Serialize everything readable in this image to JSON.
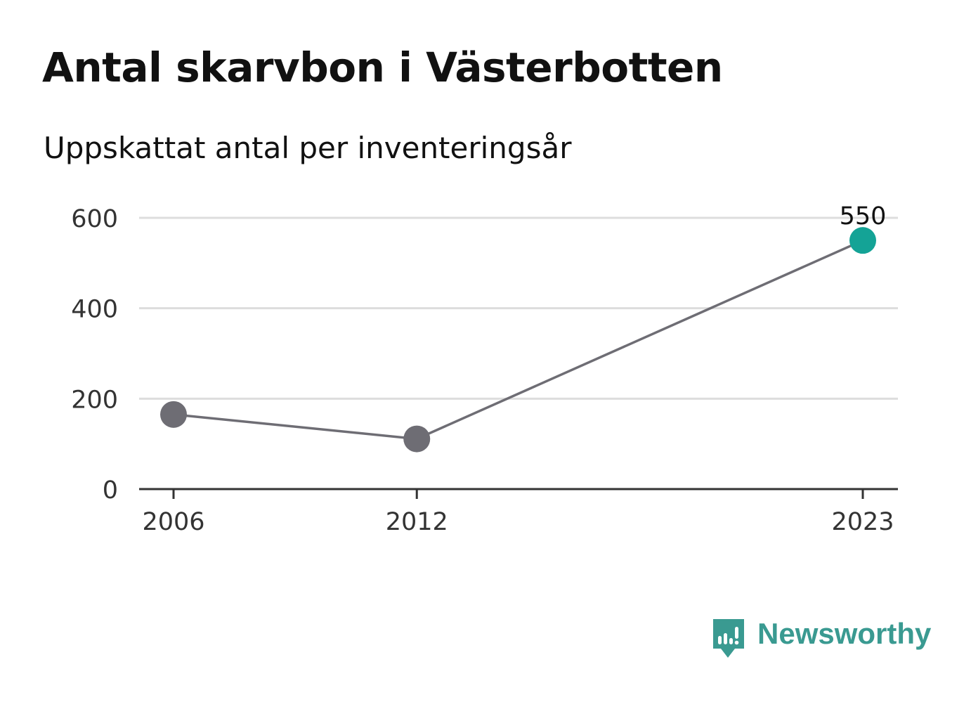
{
  "header": {
    "title": "Antal skarvbon i Västerbotten",
    "subtitle": "Uppskattat antal per inventeringsår"
  },
  "chart_data": {
    "type": "line",
    "x": [
      2006,
      2012,
      2023
    ],
    "series": [
      {
        "values": [
          165,
          111,
          550
        ]
      }
    ],
    "xticks": [
      "2006",
      "2012",
      "2023"
    ],
    "yticks": [
      0,
      200,
      400,
      600
    ],
    "ylim": [
      0,
      600
    ],
    "xlim": [
      2006,
      2023
    ],
    "grid": true,
    "annotations": [
      {
        "x": 2023,
        "y": 550,
        "text": "550"
      }
    ],
    "colors": {
      "line": "#6e6d74",
      "point": "#6e6d74",
      "highlight": "#14a396",
      "grid": "#dddddd",
      "axis": "#333333"
    }
  },
  "footer": {
    "brand": "Newsworthy",
    "logo_icon": "newsworthy-bars-icon",
    "brand_color": "#3a9a91"
  }
}
